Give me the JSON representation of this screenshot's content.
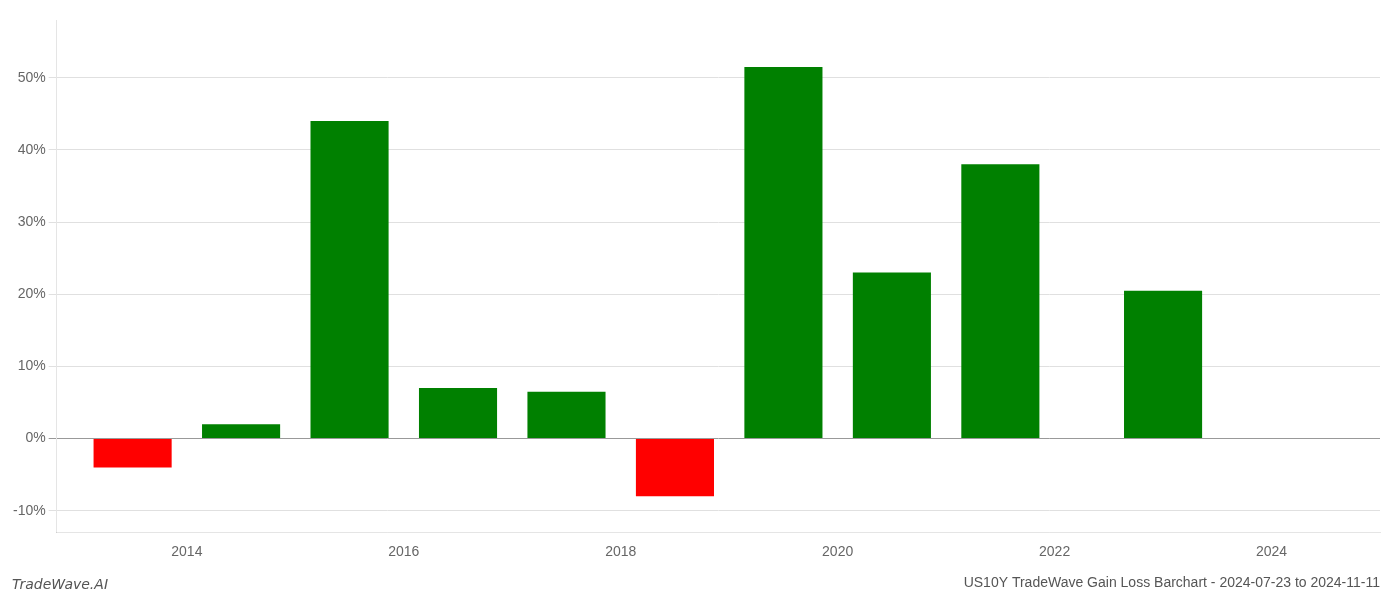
{
  "chart_data": {
    "type": "bar",
    "title": "US10Y TradeWave Gain Loss Barchart - 2024-07-23 to 2024-11-11",
    "annotations": [
      "TradeWave.AI"
    ],
    "x": [
      2013.5,
      2014.5,
      2015.5,
      2016.5,
      2017.5,
      2018.5,
      2019.5,
      2020.5,
      2021.5,
      2023.0
    ],
    "values": [
      -4.0,
      2.0,
      44.0,
      7.0,
      6.5,
      -8.0,
      51.5,
      23.0,
      38.0,
      20.5
    ],
    "colors": [
      "#ff0000",
      "#008000",
      "#008000",
      "#008000",
      "#008000",
      "#ff0000",
      "#008000",
      "#008000",
      "#008000",
      "#008000"
    ],
    "xlim": [
      2012.8,
      2025.0
    ],
    "xticks": [
      2014,
      2016,
      2018,
      2020,
      2022,
      2024
    ],
    "ylim": [
      -13,
      58
    ],
    "yticks": [
      {
        "value": -10,
        "label": "-10%"
      },
      {
        "value": 0,
        "label": "0%"
      },
      {
        "value": 10,
        "label": "10%"
      },
      {
        "value": 20,
        "label": "20%"
      },
      {
        "value": 30,
        "label": "30%"
      },
      {
        "value": 40,
        "label": "40%"
      },
      {
        "value": 50,
        "label": "50%"
      }
    ],
    "grid": "y"
  }
}
